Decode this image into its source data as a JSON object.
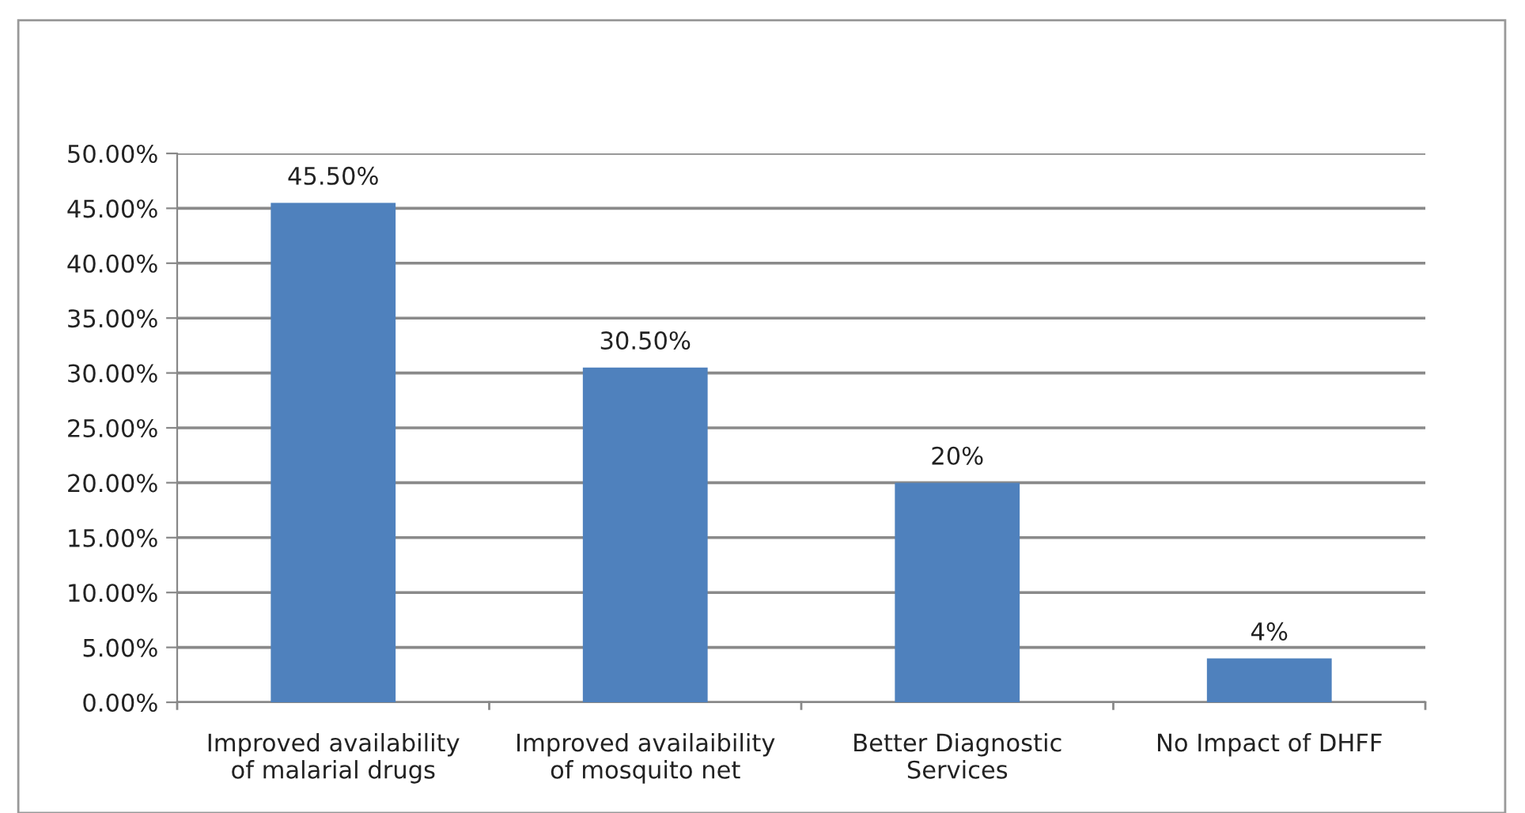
{
  "chart_data": {
    "type": "bar",
    "categories": [
      "Improved availability of malarial drugs",
      "Improved availaibility of mosquito net",
      "Better Diagnostic Services",
      "No Impact of DHFF"
    ],
    "values": [
      45.5,
      30.5,
      20,
      4
    ],
    "value_labels": [
      "45.50%",
      "30.50%",
      "20%",
      "4%"
    ],
    "color": "#4f81bd",
    "ylim": [
      0,
      50
    ],
    "yticks": [
      {
        "value": 0,
        "label": "0.00%"
      },
      {
        "value": 5,
        "label": "5.00%"
      },
      {
        "value": 10,
        "label": "10.00%"
      },
      {
        "value": 15,
        "label": "15.00%"
      },
      {
        "value": 20,
        "label": "20.00%"
      },
      {
        "value": 25,
        "label": "25.00%"
      },
      {
        "value": 30,
        "label": "30.00%"
      },
      {
        "value": 35,
        "label": "35.00%"
      },
      {
        "value": 40,
        "label": "40.00%"
      },
      {
        "value": 45,
        "label": "45.00%"
      },
      {
        "value": 50,
        "label": "50.00%"
      }
    ],
    "grid": "y"
  }
}
